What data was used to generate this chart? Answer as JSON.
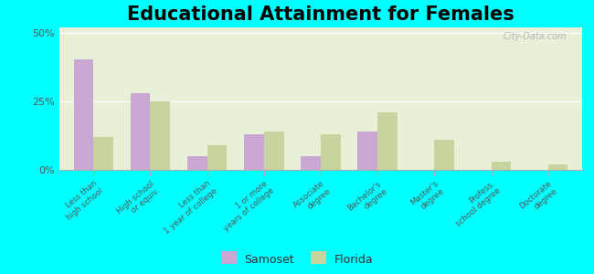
{
  "title": "Educational Attainment for Females",
  "categories": [
    "Less than\nhigh school",
    "High school\nor equiv.",
    "Less than\n1 year of college",
    "1 or more\nyears of college",
    "Associate\ndegree",
    "Bachelor's\ndegree",
    "Master's\ndegree",
    "Profess.\nschool degree",
    "Doctorate\ndegree"
  ],
  "samoset": [
    40.5,
    28.0,
    5.0,
    13.0,
    5.0,
    14.0,
    0.0,
    0.0,
    0.0
  ],
  "florida": [
    12.0,
    25.0,
    9.0,
    14.0,
    13.0,
    21.0,
    11.0,
    3.0,
    2.0
  ],
  "samoset_color": "#c9a8d4",
  "florida_color": "#c8d4a0",
  "background_color": "#e8f0d8",
  "outer_background": "#00ffff",
  "ylim": [
    0,
    52
  ],
  "yticks": [
    0,
    25,
    50
  ],
  "ytick_labels": [
    "0%",
    "25%",
    "50%"
  ],
  "legend_samoset": "Samoset",
  "legend_florida": "Florida",
  "title_fontsize": 15,
  "bar_width": 0.35
}
